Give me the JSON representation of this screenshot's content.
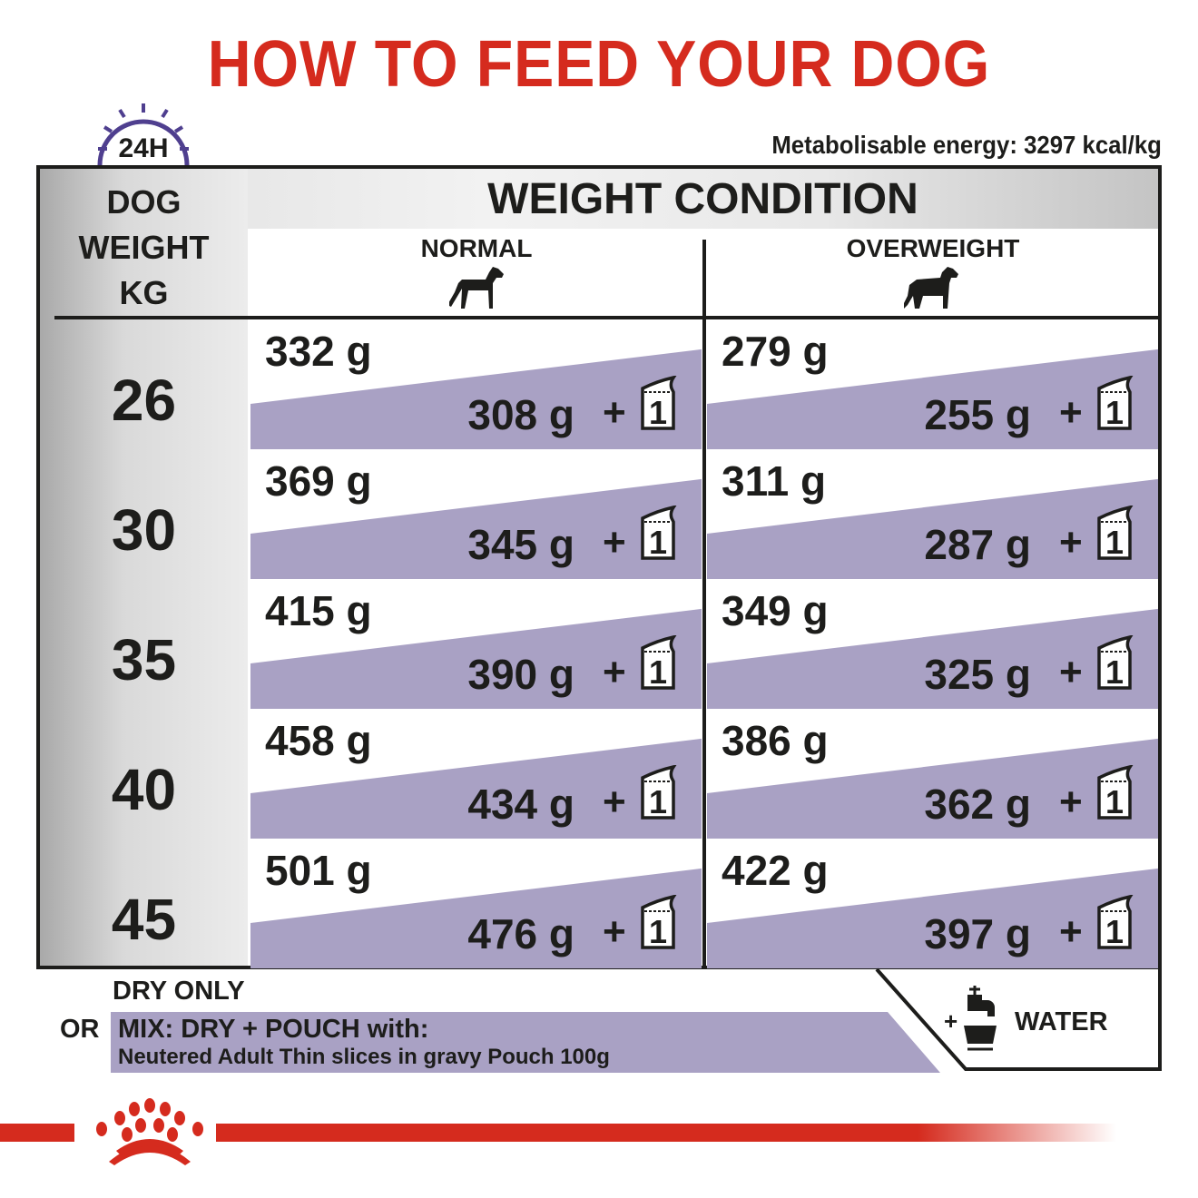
{
  "title": "HOW TO FEED YOUR DOG",
  "clock_label": "24H",
  "energy": "Metabolisable energy: 3297 kcal/kg",
  "table": {
    "weight_header": [
      "DOG",
      "WEIGHT",
      "KG"
    ],
    "condition_header": "WEIGHT CONDITION",
    "columns": [
      "NORMAL",
      "OVERWEIGHT"
    ],
    "rows": [
      {
        "weight": "26",
        "normal": {
          "dry": "332 g",
          "mix": "308 g"
        },
        "overweight": {
          "dry": "279 g",
          "mix": "255 g"
        }
      },
      {
        "weight": "30",
        "normal": {
          "dry": "369 g",
          "mix": "345 g"
        },
        "overweight": {
          "dry": "311 g",
          "mix": "287 g"
        }
      },
      {
        "weight": "35",
        "normal": {
          "dry": "415 g",
          "mix": "390 g"
        },
        "overweight": {
          "dry": "349 g",
          "mix": "325 g"
        }
      },
      {
        "weight": "40",
        "normal": {
          "dry": "458 g",
          "mix": "434 g"
        },
        "overweight": {
          "dry": "386 g",
          "mix": "362 g"
        }
      },
      {
        "weight": "45",
        "normal": {
          "dry": "501 g",
          "mix": "476 g"
        },
        "overweight": {
          "dry": "422 g",
          "mix": "397 g"
        }
      }
    ],
    "plus": "+",
    "pouch_count": "1"
  },
  "legend": {
    "dry_only": "DRY ONLY",
    "or": "OR",
    "mix": "MIX: DRY + POUCH with:",
    "pouch_name": "Neutered Adult Thin slices in gravy Pouch 100g",
    "water_plus": "+",
    "water": "WATER"
  },
  "colors": {
    "brand_red": "#d52b1e",
    "purple": "#a9a1c4",
    "clock": "#4f3f8f",
    "text": "#1d1d1b"
  },
  "icons": [
    "clock-icon",
    "normal-dog-icon",
    "overweight-dog-icon",
    "pouch-icon",
    "water-tap-icon",
    "royal-canin-crown-logo"
  ]
}
